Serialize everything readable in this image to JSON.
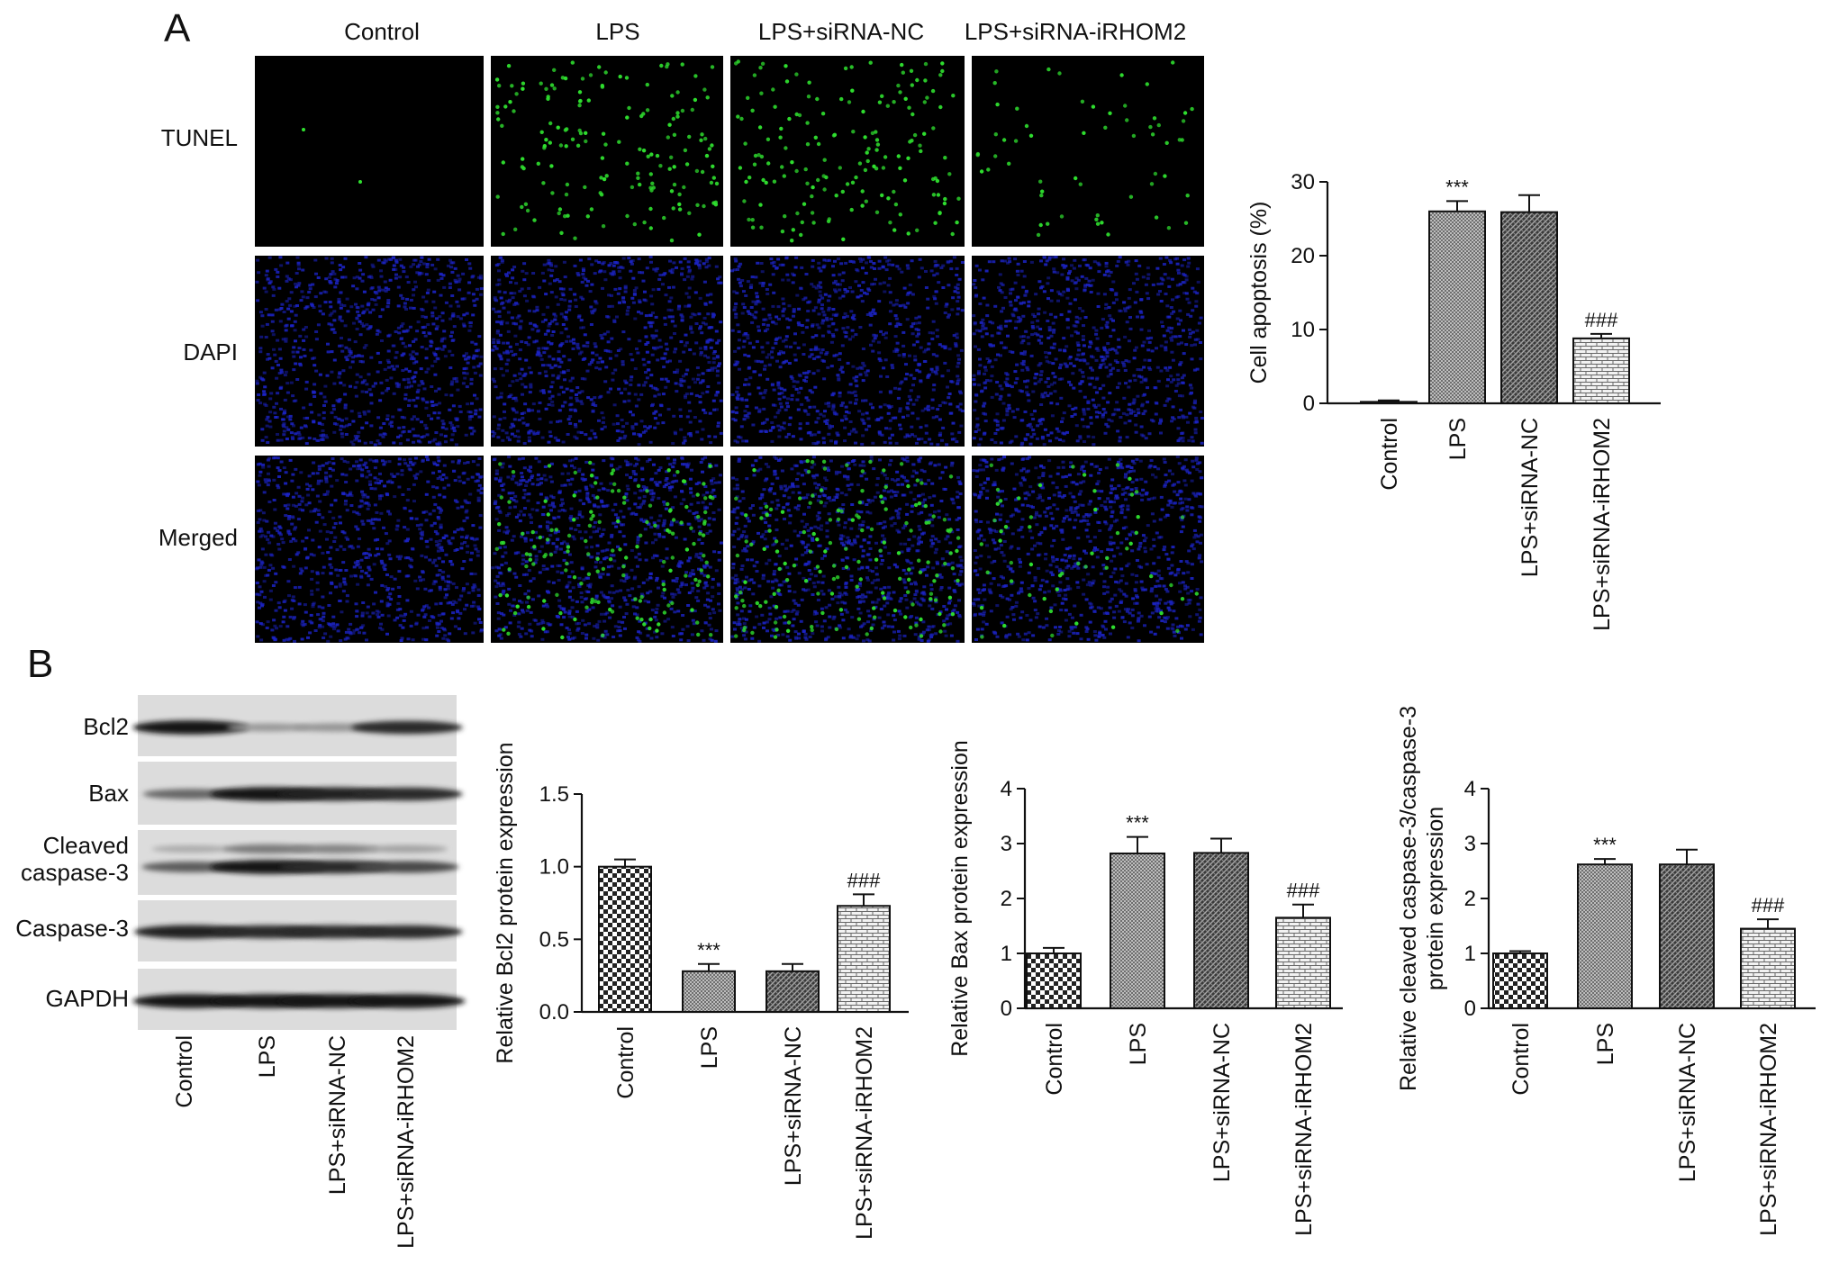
{
  "panels": {
    "a": "A",
    "b": "B"
  },
  "micro": {
    "columns": [
      "Control",
      "LPS",
      "LPS+siRNA-NC",
      "LPS+siRNA-iRHOM2"
    ],
    "rows": [
      "TUNEL",
      "DAPI",
      "Merged"
    ],
    "colors": {
      "background": "#000000",
      "tunel_dot": "#2fe02f",
      "dapi": "#1c24c8"
    }
  },
  "western": {
    "bands": [
      "Bcl2",
      "Bax",
      "Cleaved\ncaspase-3",
      "Caspase-3",
      "GAPDH"
    ],
    "lanes": [
      "Control",
      "LPS",
      "LPS+siRNA-NC",
      "LPS+siRNA-iRHOM2"
    ],
    "intensity": {
      "Bcl2": [
        0.95,
        0.3,
        0.32,
        0.85
      ],
      "Bax": [
        0.55,
        0.95,
        0.9,
        0.85
      ],
      "Cleaved_upper": [
        0.2,
        0.45,
        0.4,
        0.25
      ],
      "Cleaved_lower": [
        0.6,
        0.95,
        0.85,
        0.7
      ],
      "Caspase-3": [
        0.9,
        0.85,
        0.85,
        0.85
      ],
      "GAPDH": [
        0.95,
        0.95,
        0.95,
        0.95
      ]
    }
  },
  "chart_data": [
    {
      "id": "apoptosis",
      "type": "bar",
      "categories": [
        "Control",
        "LPS",
        "LPS+siRNA-NC",
        "LPS+siRNA-iRHOM2"
      ],
      "values": [
        0.2,
        26.0,
        25.9,
        8.8
      ],
      "errors": [
        0.2,
        1.4,
        2.3,
        0.6
      ],
      "ylabel": "Cell apoptosis (%)",
      "ylim": [
        0,
        30
      ],
      "yticks": [
        "0",
        "10",
        "20",
        "30"
      ],
      "annotations": [
        "",
        "***",
        "",
        "###"
      ],
      "patterns": [
        "dots",
        "fine",
        "dense",
        "brick"
      ]
    },
    {
      "id": "bcl2",
      "type": "bar",
      "categories": [
        "Control",
        "LPS",
        "LPS+siRNA-NC",
        "LPS+siRNA-iRHOM2"
      ],
      "values": [
        1.0,
        0.28,
        0.28,
        0.73
      ],
      "errors": [
        0.05,
        0.05,
        0.05,
        0.08
      ],
      "ylabel": "Relative Bcl2 protein expression",
      "ylim": [
        0,
        1.5
      ],
      "yticks": [
        "0.0",
        "0.5",
        "1.0",
        "1.5"
      ],
      "annotations": [
        "",
        "***",
        "",
        "###"
      ],
      "patterns": [
        "check",
        "fine",
        "dense",
        "brick"
      ]
    },
    {
      "id": "bax",
      "type": "bar",
      "categories": [
        "Control",
        "LPS",
        "LPS+siRNA-NC",
        "LPS+siRNA-iRHOM2"
      ],
      "values": [
        1.0,
        2.82,
        2.83,
        1.65
      ],
      "errors": [
        0.1,
        0.3,
        0.26,
        0.24
      ],
      "ylabel": "Relative Bax protein expression",
      "ylim": [
        0,
        4
      ],
      "yticks": [
        "0",
        "1",
        "2",
        "3",
        "4"
      ],
      "annotations": [
        "",
        "***",
        "",
        "###"
      ],
      "patterns": [
        "check",
        "fine",
        "dense",
        "brick"
      ]
    },
    {
      "id": "cleaved",
      "type": "bar",
      "categories": [
        "Control",
        "LPS",
        "LPS+siRNA-NC",
        "LPS+siRNA-iRHOM2"
      ],
      "values": [
        1.0,
        2.62,
        2.62,
        1.45
      ],
      "errors": [
        0.04,
        0.1,
        0.27,
        0.17
      ],
      "ylabel": "Relative cleaved caspase-3/caspase-3\nprotein expression",
      "ylim": [
        0,
        4
      ],
      "yticks": [
        "0",
        "1",
        "2",
        "3",
        "4"
      ],
      "annotations": [
        "",
        "***",
        "",
        "###"
      ],
      "patterns": [
        "check",
        "fine",
        "dense",
        "brick"
      ]
    }
  ]
}
